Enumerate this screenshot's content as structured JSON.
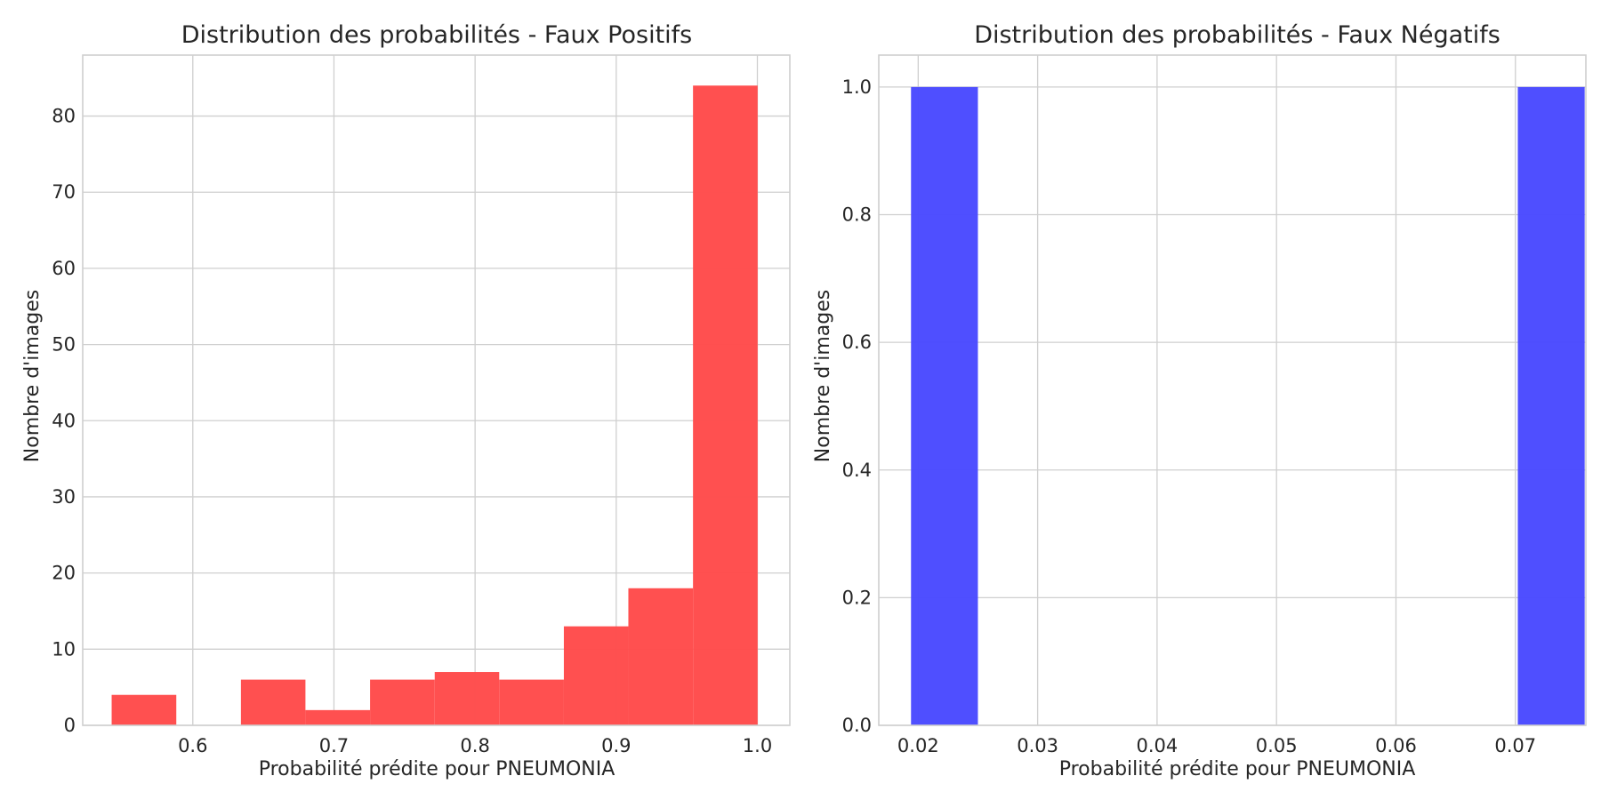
{
  "chart_data": [
    {
      "type": "bar",
      "title": "Distribution des probabilités - Faux Positifs",
      "xlabel": "Probabilité prédite pour PNEUMONIA",
      "ylabel": "Nombre d'images",
      "color": "#ff4c4c",
      "xlim": [
        0.522,
        1.023
      ],
      "ylim": [
        0,
        88
      ],
      "x_ticks": [
        0.6,
        0.7,
        0.8,
        0.9,
        1.0
      ],
      "x_tick_labels": [
        "0.6",
        "0.7",
        "0.8",
        "0.9",
        "1.0"
      ],
      "y_ticks": [
        0,
        10,
        20,
        30,
        40,
        50,
        60,
        70,
        80
      ],
      "y_tick_labels": [
        "0",
        "10",
        "20",
        "30",
        "40",
        "50",
        "60",
        "70",
        "80"
      ],
      "bins": [
        {
          "x0": 0.5425,
          "x1": 0.5883,
          "count": 4
        },
        {
          "x0": 0.5883,
          "x1": 0.6341,
          "count": 0
        },
        {
          "x0": 0.6341,
          "x1": 0.6798,
          "count": 6
        },
        {
          "x0": 0.6798,
          "x1": 0.7256,
          "count": 2
        },
        {
          "x0": 0.7256,
          "x1": 0.7714,
          "count": 6
        },
        {
          "x0": 0.7714,
          "x1": 0.8171,
          "count": 7
        },
        {
          "x0": 0.8171,
          "x1": 0.8629,
          "count": 6
        },
        {
          "x0": 0.8629,
          "x1": 0.9086,
          "count": 13
        },
        {
          "x0": 0.9086,
          "x1": 0.9544,
          "count": 18
        },
        {
          "x0": 0.9544,
          "x1": 1.0002,
          "count": 84
        }
      ],
      "grid": true
    },
    {
      "type": "bar",
      "title": "Distribution des probabilités - Faux Négatifs",
      "xlabel": "Probabilité prédite pour PNEUMONIA",
      "ylabel": "Nombre d'images",
      "color": "#4b4bff",
      "xlim": [
        0.0167,
        0.0759
      ],
      "ylim": [
        0,
        1.05
      ],
      "x_ticks": [
        0.02,
        0.03,
        0.04,
        0.05,
        0.06,
        0.07
      ],
      "x_tick_labels": [
        "0.02",
        "0.03",
        "0.04",
        "0.05",
        "0.06",
        "0.07"
      ],
      "y_ticks": [
        0.0,
        0.2,
        0.4,
        0.6,
        0.8,
        1.0
      ],
      "y_tick_labels": [
        "0.0",
        "0.2",
        "0.4",
        "0.6",
        "0.8",
        "1.0"
      ],
      "bins": [
        {
          "x0": 0.0194,
          "x1": 0.025,
          "count": 1
        },
        {
          "x0": 0.025,
          "x1": 0.0307,
          "count": 0
        },
        {
          "x0": 0.0307,
          "x1": 0.0363,
          "count": 0
        },
        {
          "x0": 0.0363,
          "x1": 0.042,
          "count": 0
        },
        {
          "x0": 0.042,
          "x1": 0.0476,
          "count": 0
        },
        {
          "x0": 0.0476,
          "x1": 0.0532,
          "count": 0
        },
        {
          "x0": 0.0532,
          "x1": 0.0589,
          "count": 0
        },
        {
          "x0": 0.0589,
          "x1": 0.0645,
          "count": 0
        },
        {
          "x0": 0.0645,
          "x1": 0.0702,
          "count": 0
        },
        {
          "x0": 0.0702,
          "x1": 0.0758,
          "count": 1
        }
      ],
      "grid": true
    }
  ]
}
